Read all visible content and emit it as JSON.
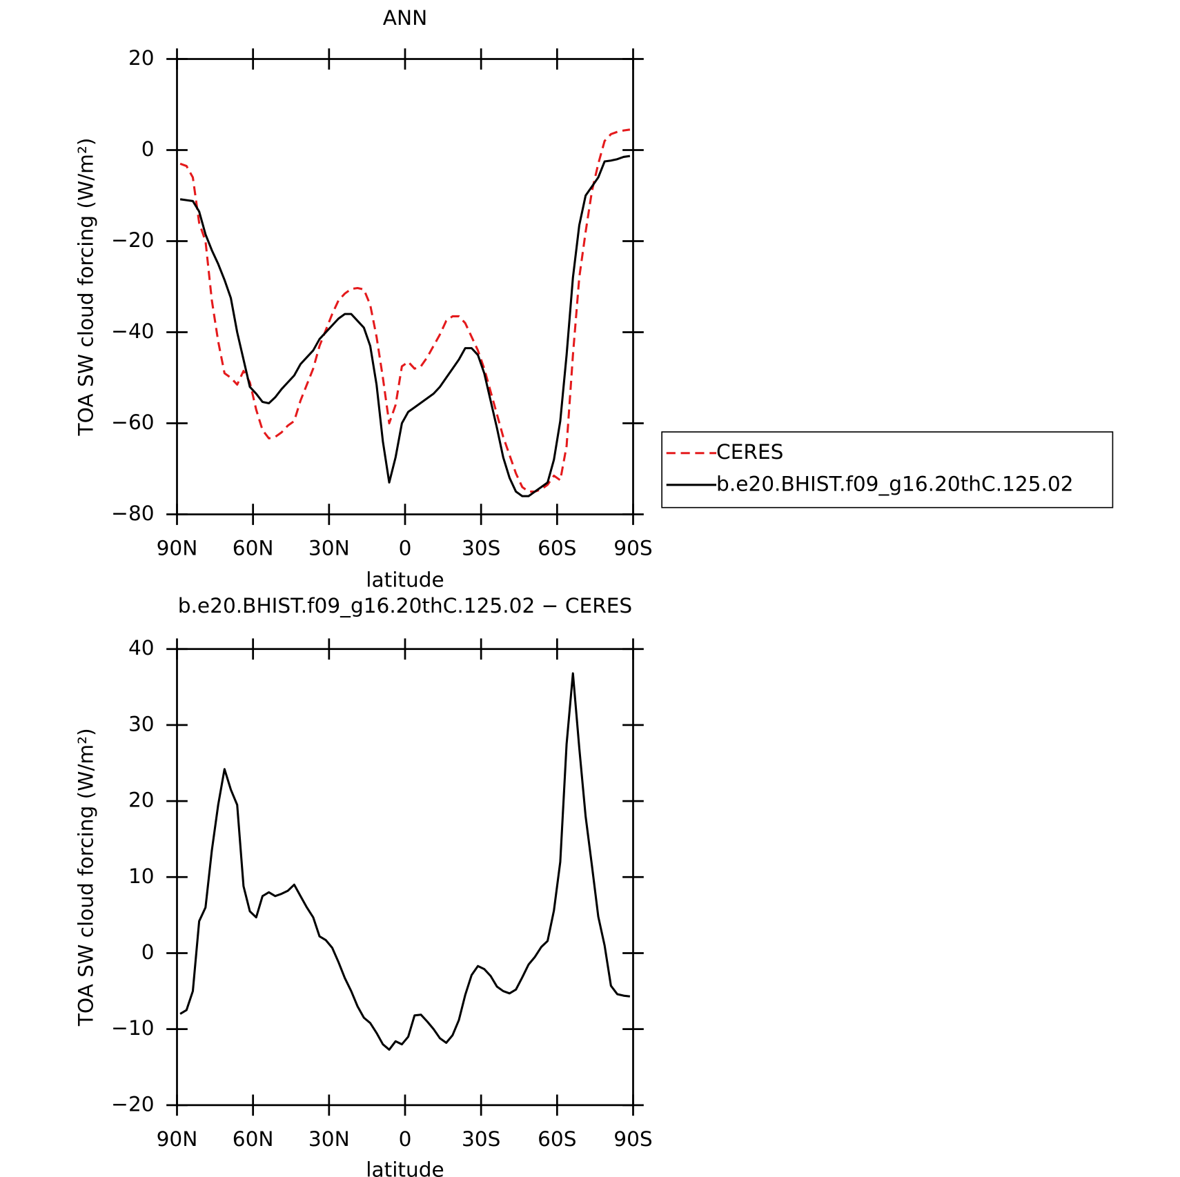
{
  "chart_data": [
    {
      "type": "line",
      "title": "ANN",
      "xlabel": "latitude",
      "ylabel": "TOA SW cloud forcing (W/m²)",
      "x": [
        88.75,
        86.25,
        83.75,
        81.25,
        78.75,
        76.25,
        73.75,
        71.25,
        68.75,
        66.25,
        63.75,
        61.25,
        58.75,
        56.25,
        53.75,
        51.25,
        48.75,
        46.25,
        43.75,
        41.25,
        38.75,
        36.25,
        33.75,
        31.25,
        28.75,
        26.25,
        23.75,
        21.25,
        18.75,
        16.25,
        13.75,
        11.25,
        8.75,
        6.25,
        3.75,
        1.25,
        -1.25,
        -3.75,
        -6.25,
        -8.75,
        -11.25,
        -13.75,
        -16.25,
        -18.75,
        -21.25,
        -23.75,
        -26.25,
        -28.75,
        -31.25,
        -33.75,
        -36.25,
        -38.75,
        -41.25,
        -43.75,
        -46.25,
        -48.75,
        -51.25,
        -53.75,
        -56.25,
        -58.75,
        -61.25,
        -63.75,
        -66.25,
        -68.75,
        -71.25,
        -73.75,
        -76.25,
        -78.75,
        -81.25,
        -83.75,
        -86.25,
        -88.75
      ],
      "series": [
        {
          "name": "CERES",
          "color": "#e41a1c",
          "dashed": true,
          "values": [
            -3,
            -3.5,
            -6,
            -16,
            -20,
            -33,
            -42,
            -49,
            -50,
            -51.5,
            -48.5,
            -51,
            -57,
            -61.5,
            -63.3,
            -63,
            -62,
            -60.5,
            -59.5,
            -55,
            -51.5,
            -48,
            -43,
            -39.5,
            -36,
            -33,
            -31.5,
            -30.5,
            -30.3,
            -30.6,
            -34,
            -41,
            -50,
            -60,
            -56,
            -47.5,
            -46.5,
            -48,
            -47.5,
            -45.5,
            -43,
            -40.5,
            -37.5,
            -36.5,
            -36.5,
            -38,
            -41,
            -44,
            -48,
            -53,
            -58,
            -63,
            -67,
            -71,
            -74,
            -75,
            -75,
            -74.5,
            -73.5,
            -71.5,
            -72.5,
            -65,
            -45,
            -28,
            -18,
            -9,
            -3,
            2,
            3.5,
            4,
            4.3,
            4.5
          ]
        },
        {
          "name": "b.e20.BHIST.f09_g16.20thC.125.02",
          "color": "#000000",
          "dashed": false,
          "values": [
            -10.8,
            -11,
            -11.2,
            -13.5,
            -18.5,
            -22,
            -25,
            -28.5,
            -32.5,
            -40,
            -46,
            -52,
            -53.5,
            -55.3,
            -55.6,
            -54.3,
            -52.5,
            -51,
            -49.5,
            -47,
            -45.5,
            -44,
            -41.5,
            -40,
            -38.5,
            -37,
            -36,
            -36,
            -37.5,
            -39,
            -43,
            -51.5,
            -64,
            -73,
            -67.5,
            -60,
            -57.5,
            -56.5,
            -55.5,
            -54.5,
            -53.5,
            -52,
            -50,
            -48,
            -46,
            -43.5,
            -43.5,
            -45,
            -49,
            -55,
            -61,
            -67.5,
            -72,
            -75,
            -76,
            -76,
            -75,
            -74,
            -73,
            -68,
            -59.5,
            -45,
            -28,
            -16.5,
            -10,
            -8,
            -6,
            -2.5,
            -2.3,
            -2,
            -1.5,
            -1.3
          ]
        }
      ],
      "xlim": [
        90,
        -90
      ],
      "xticks": [
        {
          "value": 90,
          "label": "90N"
        },
        {
          "value": 60,
          "label": "60N"
        },
        {
          "value": 30,
          "label": "30N"
        },
        0,
        {
          "value": -30,
          "label": "30S"
        },
        {
          "value": -60,
          "label": "60S"
        },
        {
          "value": -90,
          "label": "90S"
        }
      ],
      "ylim": [
        -80,
        20
      ],
      "yticks": [
        {
          "value": -80,
          "label": "−80"
        },
        {
          "value": -60,
          "label": "−60"
        },
        {
          "value": -40,
          "label": "−40"
        },
        {
          "value": -20,
          "label": "−20"
        },
        0,
        20
      ],
      "legend": "right"
    },
    {
      "type": "line",
      "title": "b.e20.BHIST.f09_g16.20thC.125.02 − CERES",
      "xlabel": "latitude",
      "ylabel": "TOA SW cloud forcing (W/m²)",
      "x": [
        88.75,
        86.25,
        83.75,
        81.25,
        78.75,
        76.25,
        73.75,
        71.25,
        68.75,
        66.25,
        63.75,
        61.25,
        58.75,
        56.25,
        53.75,
        51.25,
        48.75,
        46.25,
        43.75,
        41.25,
        38.75,
        36.25,
        33.75,
        31.25,
        28.75,
        26.25,
        23.75,
        21.25,
        18.75,
        16.25,
        13.75,
        11.25,
        8.75,
        6.25,
        3.75,
        1.25,
        -1.25,
        -3.75,
        -6.25,
        -8.75,
        -11.25,
        -13.75,
        -16.25,
        -18.75,
        -21.25,
        -23.75,
        -26.25,
        -28.75,
        -31.25,
        -33.75,
        -36.25,
        -38.75,
        -41.25,
        -43.75,
        -46.25,
        -48.75,
        -51.25,
        -53.75,
        -56.25,
        -58.75,
        -61.25,
        -63.75,
        -66.25,
        -68.75,
        -71.25,
        -73.75,
        -76.25,
        -78.75,
        -81.25,
        -83.75,
        -86.25,
        -88.75
      ],
      "series": [
        {
          "name": "b.e20.BHIST.f09_g16.20thC.125.02 − CERES",
          "color": "#000000",
          "dashed": false,
          "values": [
            -8,
            -7.5,
            -5,
            4.2,
            6,
            13.5,
            19.5,
            24.2,
            21.5,
            19.5,
            8.8,
            5.5,
            4.7,
            7.5,
            8,
            7.5,
            7.8,
            8.2,
            9,
            7.5,
            6,
            4.7,
            2.2,
            1.7,
            0.7,
            -1.2,
            -3.3,
            -5,
            -7,
            -8.5,
            -9.2,
            -10.5,
            -12,
            -12.7,
            -11.6,
            -12,
            -11,
            -8.2,
            -8.1,
            -9,
            -10,
            -11.2,
            -11.8,
            -10.8,
            -8.8,
            -5.5,
            -2.9,
            -1.7,
            -2.1,
            -3,
            -4.4,
            -5,
            -5.3,
            -4.8,
            -3.2,
            -1.5,
            -0.5,
            0.8,
            1.6,
            5.6,
            12,
            27.5,
            36.8,
            27,
            18,
            11.5,
            4.8,
            1,
            -4.3,
            -5.4,
            -5.6,
            -5.7
          ]
        }
      ],
      "xlim": [
        90,
        -90
      ],
      "xticks": [
        {
          "value": 90,
          "label": "90N"
        },
        {
          "value": 60,
          "label": "60N"
        },
        {
          "value": 30,
          "label": "30N"
        },
        0,
        {
          "value": -30,
          "label": "30S"
        },
        {
          "value": -60,
          "label": "60S"
        },
        {
          "value": -90,
          "label": "90S"
        }
      ],
      "ylim": [
        -20,
        40
      ],
      "yticks": [
        {
          "value": -20,
          "label": "−20"
        },
        {
          "value": -10,
          "label": "−10"
        },
        0,
        10,
        20,
        30,
        40
      ]
    }
  ]
}
